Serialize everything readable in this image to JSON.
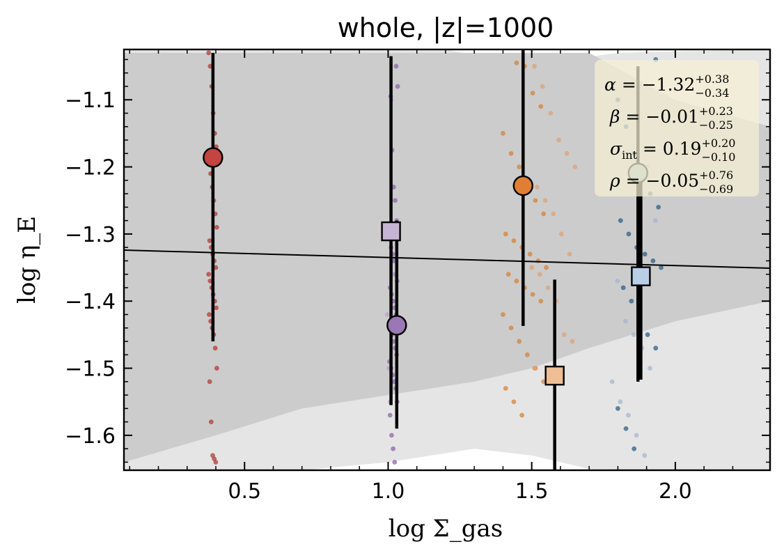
{
  "chart_data": {
    "type": "scatter",
    "title": "whole, |z|=1000",
    "xlabel": "log Σ_gas",
    "ylabel": "log η_E",
    "xlim": [
      0.08,
      2.33
    ],
    "ylim": [
      -1.652,
      -1.025
    ],
    "xticks": [
      0.5,
      1.0,
      1.5,
      2.0
    ],
    "yticks": [
      -1.1,
      -1.2,
      -1.3,
      -1.4,
      -1.5,
      -1.6
    ],
    "xtick_labels": [
      "0.5",
      "1.0",
      "1.5",
      "2.0"
    ],
    "ytick_labels": [
      "−1.1",
      "−1.2",
      "−1.3",
      "−1.4",
      "−1.5",
      "−1.6"
    ],
    "grid": false,
    "fit_line": {
      "x": [
        0.08,
        2.33
      ],
      "y": [
        -1.324,
        -1.351
      ],
      "color": "#000000"
    },
    "band_inner": {
      "color": "#cccccc",
      "x": [
        0.08,
        0.4,
        0.7,
        1.0,
        1.3,
        1.5,
        1.7,
        2.0,
        2.33
      ],
      "y_upper": [
        -1.03,
        -1.03,
        -1.03,
        -1.03,
        -1.03,
        -1.03,
        -1.03,
        -1.1,
        -1.14
      ],
      "y_lower": [
        -1.64,
        -1.6,
        -1.56,
        -1.54,
        -1.52,
        -1.5,
        -1.47,
        -1.43,
        -1.4
      ]
    },
    "band_outer": {
      "color": "#e5e5e5",
      "x": [
        0.08,
        0.4,
        0.7,
        1.0,
        1.3,
        1.5,
        1.7,
        2.0,
        2.33
      ],
      "y_upper": [
        -1.025,
        -1.025,
        -1.025,
        -1.025,
        -1.025,
        -1.025,
        -1.025,
        -1.025,
        -1.025
      ],
      "y_lower": [
        -1.652,
        -1.652,
        -1.652,
        -1.652,
        -1.652,
        -1.652,
        -1.652,
        -1.652,
        -1.652
      ]
    },
    "white_region_top": {
      "x": [
        1.2,
        1.38,
        1.5,
        1.62,
        1.8,
        2.0,
        2.33
      ],
      "y": [
        -1.025,
        -1.04,
        -1.043,
        -1.04,
        -1.03,
        -1.028,
        -1.025
      ]
    },
    "white_region_bottom": {
      "x": [
        0.08,
        0.4,
        0.7,
        1.0,
        1.3,
        1.5,
        1.7,
        2.0,
        2.33
      ],
      "y": [
        -1.652,
        -1.652,
        -1.652,
        -1.64,
        -1.62,
        -1.63,
        -1.65,
        -1.652,
        -1.652
      ]
    },
    "series": [
      {
        "marker": "circle",
        "color": "#c34440",
        "point_color": "#b23b37",
        "x_center": 0.39,
        "points_y": [
          -1.03,
          -1.05,
          -1.08,
          -1.12,
          -1.15,
          -1.17,
          -1.19,
          -1.21,
          -1.23,
          -1.25,
          -1.27,
          -1.29,
          -1.31,
          -1.32,
          -1.33,
          -1.34,
          -1.35,
          -1.36,
          -1.37,
          -1.38,
          -1.39,
          -1.4,
          -1.41,
          -1.42,
          -1.43,
          -1.44,
          -1.45,
          -1.47,
          -1.5,
          -1.52,
          -1.58,
          -1.63,
          -1.635,
          -1.64
        ],
        "mean": {
          "x": 0.39,
          "y": -1.186
        },
        "errorbar": [
          -1.46,
          -1.03
        ]
      },
      {
        "marker": "circle",
        "color": "#9a77b5",
        "point_color": "#8c67a8",
        "x_center": 1.02,
        "points_y": [
          -1.05,
          -1.08,
          -1.095,
          -1.175,
          -1.23,
          -1.25,
          -1.28,
          -1.3,
          -1.32,
          -1.33,
          -1.34,
          -1.36,
          -1.37,
          -1.38,
          -1.39,
          -1.4,
          -1.41,
          -1.42,
          -1.43,
          -1.44,
          -1.45,
          -1.46,
          -1.47,
          -1.48,
          -1.49,
          -1.5,
          -1.51,
          -1.52,
          -1.53,
          -1.55,
          -1.57,
          -1.6,
          -1.62,
          -1.64
        ],
        "mean": {
          "x": 1.03,
          "y": -1.436
        },
        "errorbar": [
          -1.59,
          -1.28
        ]
      },
      {
        "marker": "square",
        "color": "#c6b4d4",
        "point_color": "#b9a5c9",
        "x_center": 1.01,
        "points_y": [
          -1.1,
          -1.3,
          -1.36,
          -1.42,
          -1.5,
          -1.55
        ],
        "mean": {
          "x": 1.01,
          "y": -1.296
        },
        "errorbar": [
          -1.555,
          -1.035
        ]
      },
      {
        "marker": "circle",
        "color": "#e07f34",
        "point_color": "#d4833a",
        "x_center": 1.48,
        "points_y": [
          -1.045,
          -1.05,
          -1.09,
          -1.11,
          -1.15,
          -1.18,
          -1.2,
          -1.23,
          -1.25,
          -1.27,
          -1.3,
          -1.31,
          -1.32,
          -1.33,
          -1.34,
          -1.35,
          -1.36,
          -1.37,
          -1.38,
          -1.39,
          -1.4,
          -1.42,
          -1.44,
          -1.46,
          -1.48,
          -1.5,
          -1.52,
          -1.53,
          -1.55,
          -1.57
        ],
        "mean": {
          "x": 1.47,
          "y": -1.228
        },
        "errorbar": [
          -1.437,
          -1.025
        ]
      },
      {
        "marker": "square",
        "color": "#efbe94",
        "point_color": "#dca37a",
        "x_center": 1.58,
        "points_y": [
          -1.05,
          -1.08,
          -1.12,
          -1.16,
          -1.18,
          -1.2,
          -1.23,
          -1.25,
          -1.27,
          -1.3,
          -1.33,
          -1.35,
          -1.36,
          -1.38,
          -1.4,
          -1.45,
          -1.46,
          -1.5
        ],
        "mean": {
          "x": 1.58,
          "y": -1.511
        },
        "errorbar": [
          -1.652,
          -1.368
        ]
      },
      {
        "marker": "circle",
        "color": "#a1b9c2",
        "point_color": "#2f5f86",
        "x_center": 1.88,
        "points_y": [
          -1.04,
          -1.1,
          -1.14,
          -1.18,
          -1.22,
          -1.24,
          -1.26,
          -1.28,
          -1.3,
          -1.32,
          -1.33,
          -1.34,
          -1.35,
          -1.38,
          -1.4,
          -1.42,
          -1.45,
          -1.47,
          -1.56,
          -1.59,
          -1.62
        ],
        "mean": {
          "x": 1.87,
          "y": -1.209
        },
        "errorbar": [
          -1.52,
          -1.05
        ]
      },
      {
        "marker": "square",
        "color": "#b8cde6",
        "point_color": "#a7b7cd",
        "x_center": 1.86,
        "points_y": [
          -1.08,
          -1.2,
          -1.28,
          -1.37,
          -1.43,
          -1.45,
          -1.47,
          -1.5,
          -1.52,
          -1.55,
          -1.57,
          -1.6,
          -1.63
        ],
        "mean": {
          "x": 1.88,
          "y": -1.363
        },
        "errorbar": [
          -1.517,
          -1.21
        ]
      }
    ],
    "annotation": {
      "placement": "top-right",
      "box_color": "#f5f0d2",
      "lines": [
        {
          "lhs": "α",
          "op": "= ",
          "value": "−1.32",
          "sup": "+0.38",
          "sub": "−0.34"
        },
        {
          "lhs": "β",
          "op": "= ",
          "value": "−0.01",
          "sup": "+0.23",
          "sub": "−0.25"
        },
        {
          "lhs": "σ",
          "lhs_sub": "int",
          "op": "= ",
          "value": "0.19",
          "sup": "+0.20",
          "sub": "−0.10"
        },
        {
          "lhs": "ρ",
          "op": "= ",
          "value": "−0.05",
          "sup": "+0.76",
          "sub": "−0.69"
        }
      ]
    }
  }
}
